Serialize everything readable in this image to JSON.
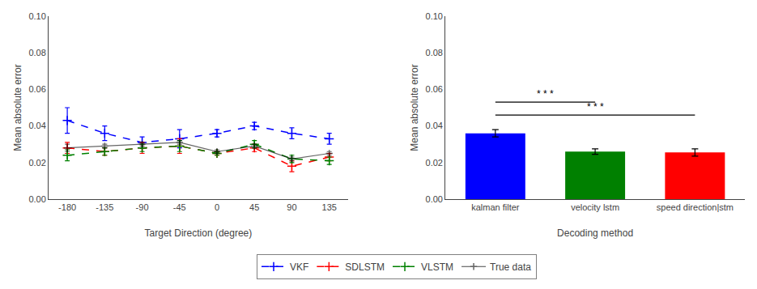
{
  "chart_data": [
    {
      "type": "line",
      "x_label": "Target Direction (degree)",
      "y_label": "Mean absolute error",
      "categories": [
        "-180",
        "-135",
        "-90",
        "-45",
        "0",
        "45",
        "90",
        "135"
      ],
      "series": [
        {
          "name": "VKF",
          "color": "blue",
          "line_style": "dashed",
          "marker": "plus",
          "values": [
            0.043,
            0.036,
            0.031,
            0.033,
            0.036,
            0.04,
            0.036,
            0.033
          ],
          "errors": [
            0.007,
            0.004,
            0.003,
            0.005,
            0.002,
            0.002,
            0.003,
            0.003
          ]
        },
        {
          "name": "SDLSTM",
          "color": "red",
          "line_style": "dashed",
          "marker": "plus",
          "values": [
            0.028,
            0.026,
            0.028,
            0.029,
            0.025,
            0.028,
            0.018,
            0.023
          ],
          "errors": [
            0.003,
            0.002,
            0.003,
            0.004,
            0.001,
            0.002,
            0.003,
            0.002
          ]
        },
        {
          "name": "VLSTM",
          "color": "green",
          "line_style": "dashed",
          "marker": "plus",
          "values": [
            0.024,
            0.026,
            0.028,
            0.029,
            0.025,
            0.03,
            0.022,
            0.021
          ],
          "errors": [
            0.003,
            0.002,
            0.002,
            0.003,
            0.001,
            0.002,
            0.002,
            0.002
          ]
        },
        {
          "name": "True data",
          "color": "black",
          "line_style": "solid",
          "marker": "plus",
          "values": [
            0.028,
            0.029,
            0.03,
            0.031,
            0.026,
            0.029,
            0.022,
            0.025
          ],
          "errors": [
            0.002,
            0.001,
            0.001,
            0.001,
            0.001,
            0.001,
            0.001,
            0.001
          ]
        }
      ],
      "ylim": [
        0.0,
        0.1
      ],
      "yticks": [
        {
          "value": 0.0,
          "label": "0.00"
        },
        {
          "value": 0.02,
          "label": "0.02"
        },
        {
          "value": 0.04,
          "label": "0.04"
        },
        {
          "value": 0.06,
          "label": "0.06"
        },
        {
          "value": 0.08,
          "label": "0.08"
        },
        {
          "value": 0.1,
          "label": "0.10"
        }
      ],
      "grid": false,
      "legend": "bottom"
    },
    {
      "type": "bar",
      "x_label": "Decoding method",
      "y_label": "Mean absolute error",
      "categories": [
        "kalman filter",
        "velocity lstm",
        "speed direction|stm"
      ],
      "values": [
        0.036,
        0.026,
        0.0255
      ],
      "errors": [
        0.002,
        0.0015,
        0.002
      ],
      "colors": [
        "blue",
        "green",
        "red"
      ],
      "annotations": [
        {
          "text": "* * *",
          "x": [
            0,
            1
          ],
          "y": 0.053
        },
        {
          "text": "* * *",
          "x": [
            0,
            2
          ],
          "y": 0.046
        }
      ],
      "ylim": [
        0.0,
        0.1
      ],
      "yticks": [
        {
          "value": 0.0,
          "label": "0.00"
        },
        {
          "value": 0.02,
          "label": "0.02"
        },
        {
          "value": 0.04,
          "label": "0.04"
        },
        {
          "value": 0.06,
          "label": "0.06"
        },
        {
          "value": 0.08,
          "label": "0.08"
        },
        {
          "value": 0.1,
          "label": "0.10"
        }
      ],
      "grid": false
    }
  ]
}
